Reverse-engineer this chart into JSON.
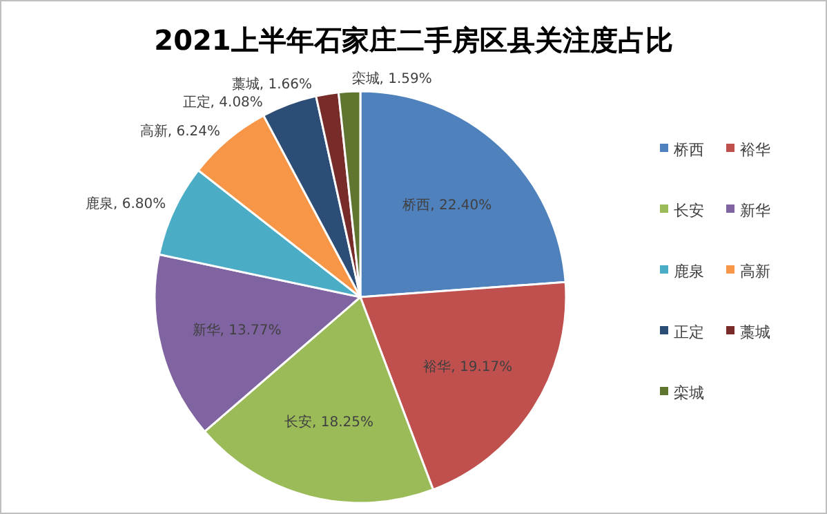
{
  "chart_data": {
    "type": "pie",
    "title": "2021上半年石家庄二手房区县关注度占比",
    "categories": [
      "桥西",
      "裕华",
      "长安",
      "新华",
      "鹿泉",
      "高新",
      "正定",
      "藁城",
      "栾城"
    ],
    "values": [
      22.4,
      19.17,
      18.25,
      13.77,
      6.8,
      6.24,
      4.08,
      1.66,
      1.59
    ],
    "value_labels": [
      "桥西, 22.40%",
      "裕华, 19.17%",
      "长安, 18.25%",
      "新华, 13.77%",
      "鹿泉, 6.80%",
      "高新, 6.24%",
      "正定, 4.08%",
      "藁城, 1.66%",
      "栾城, 1.59%"
    ],
    "colors": [
      "#4f81bd",
      "#c0504d",
      "#9bbb59",
      "#8064a2",
      "#4bacc6",
      "#f79646",
      "#2c4d75",
      "#772c2a",
      "#5f7530"
    ],
    "legend": "right"
  }
}
